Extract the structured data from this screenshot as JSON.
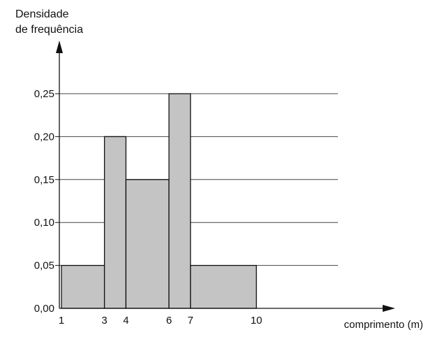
{
  "chart_data": {
    "type": "bar",
    "title": "",
    "ylabel_lines": [
      "Densidade",
      "de frequência"
    ],
    "xlabel": "comprimento (m)",
    "bins": [
      {
        "from": 1,
        "to": 3,
        "density": 0.05
      },
      {
        "from": 3,
        "to": 4,
        "density": 0.2
      },
      {
        "from": 4,
        "to": 6,
        "density": 0.15
      },
      {
        "from": 6,
        "to": 7,
        "density": 0.25
      },
      {
        "from": 7,
        "to": 10,
        "density": 0.05
      }
    ],
    "x_ticks": [
      1,
      3,
      4,
      6,
      7,
      10
    ],
    "x_tick_labels": [
      "1",
      "3",
      "4",
      "6",
      "7",
      "10"
    ],
    "y_ticks": [
      0,
      0.05,
      0.1,
      0.15,
      0.2,
      0.25
    ],
    "y_tick_labels": [
      "0,00",
      "0,05",
      "0,10",
      "0,15",
      "0,20",
      "0,25"
    ],
    "grid": "horizontal",
    "colors": {
      "bar_fill": "#c4c4c4",
      "bar_stroke": "#111111",
      "grid": "#444444"
    }
  }
}
